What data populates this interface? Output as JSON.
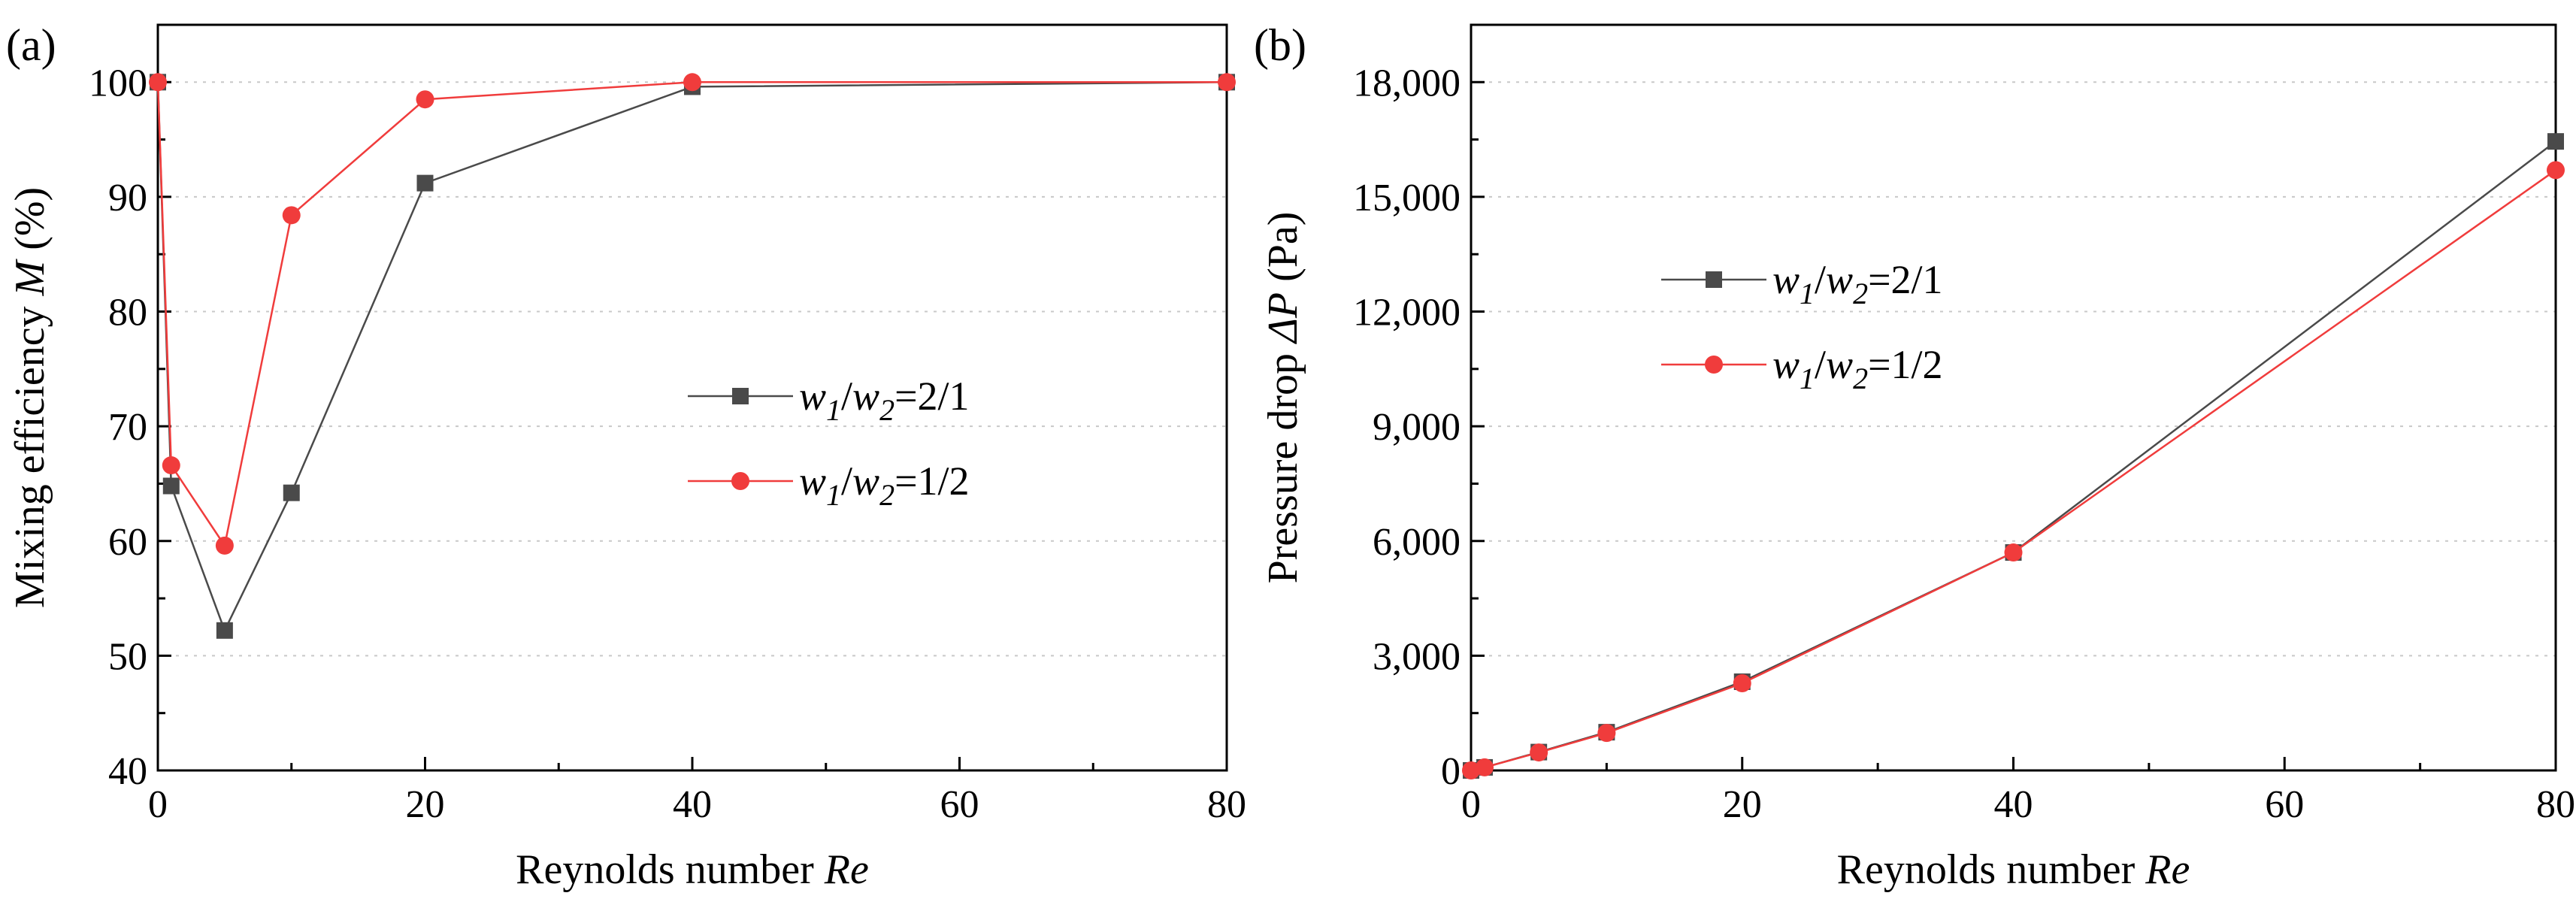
{
  "chart_data": [
    {
      "type": "line",
      "panel_label": "(a)",
      "xlabel_prefix": "Reynolds number ",
      "xlabel_var": "Re",
      "ylabel_prefix": "Mixing efficiency ",
      "ylabel_var": "M",
      "ylabel_suffix": " (%)",
      "xlim": [
        0,
        80
      ],
      "ylim": [
        40,
        105
      ],
      "xticks": [
        0,
        20,
        40,
        60,
        80
      ],
      "xtick_labels": [
        "0",
        "20",
        "40",
        "60",
        "80"
      ],
      "yticks": [
        40,
        50,
        60,
        70,
        80,
        90,
        100
      ],
      "ytick_labels": [
        "40",
        "50",
        "60",
        "70",
        "80",
        "90",
        "100"
      ],
      "grid": "horizontal dotted",
      "legend_position": "center-right",
      "series": [
        {
          "name": "w1/w2=2/1",
          "marker": "square",
          "color": "#4a4a4a",
          "x": [
            0,
            1,
            5,
            10,
            20,
            40,
            80
          ],
          "y": [
            100,
            64.8,
            52.2,
            64.2,
            91.2,
            99.6,
            100
          ]
        },
        {
          "name": "w1/w2=1/2",
          "marker": "circle",
          "color": "#f03c3c",
          "x": [
            0,
            1,
            5,
            10,
            20,
            40,
            80
          ],
          "y": [
            100,
            66.6,
            59.6,
            88.4,
            98.5,
            100,
            100
          ]
        }
      ]
    },
    {
      "type": "line",
      "panel_label": "(b)",
      "xlabel_prefix": "Reynolds number ",
      "xlabel_var": "Re",
      "ylabel_prefix": "Pressure drop ",
      "ylabel_var": "ΔP",
      "ylabel_suffix": " (Pa)",
      "xlim": [
        0,
        80
      ],
      "ylim": [
        0,
        19500
      ],
      "xticks": [
        0,
        20,
        40,
        60,
        80
      ],
      "xtick_labels": [
        "0",
        "20",
        "40",
        "60",
        "80"
      ],
      "yticks": [
        0,
        3000,
        6000,
        9000,
        12000,
        15000,
        18000
      ],
      "ytick_labels": [
        "0",
        "3,000",
        "6,000",
        "9,000",
        "12,000",
        "15,000",
        "18,000"
      ],
      "grid": "horizontal dotted",
      "legend_position": "upper-left",
      "series": [
        {
          "name": "w1/w2=2/1",
          "marker": "square",
          "color": "#4a4a4a",
          "x": [
            0,
            1,
            5,
            10,
            20,
            40,
            80
          ],
          "y": [
            0,
            80,
            480,
            1000,
            2320,
            5700,
            16450
          ]
        },
        {
          "name": "w1/w2=1/2",
          "marker": "circle",
          "color": "#f03c3c",
          "x": [
            0,
            1,
            5,
            10,
            20,
            40,
            80
          ],
          "y": [
            0,
            80,
            470,
            980,
            2280,
            5700,
            15700
          ]
        }
      ]
    }
  ]
}
